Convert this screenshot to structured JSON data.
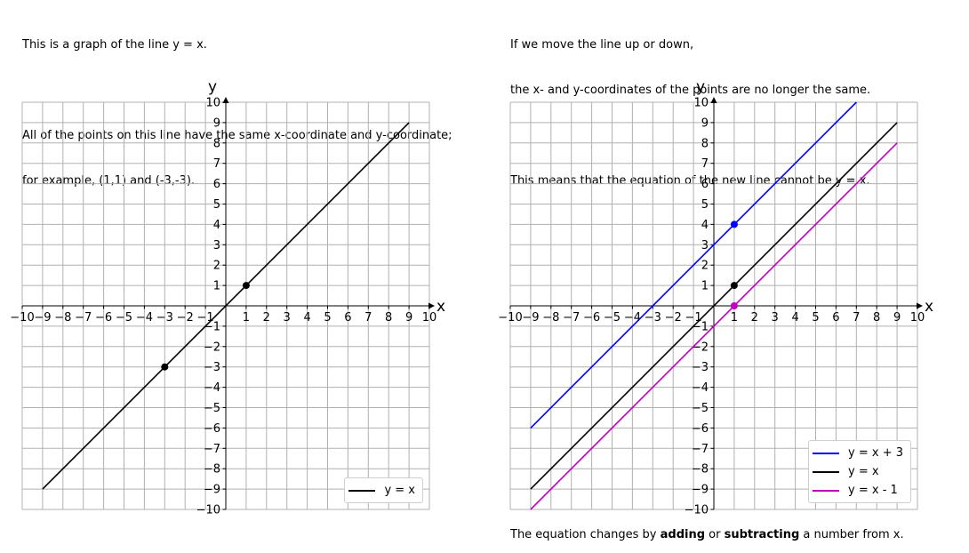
{
  "left_text": {
    "line1": "This is a graph of the line y = x.",
    "line2": "All of the points on this line have the same x-coordinate and y-coordinate;",
    "line3": "for example, (1,1) and (-3,-3)."
  },
  "right_text": {
    "line1": "If we move the line up or down,",
    "line2": "the x- and y-coordinates of the points are no longer the same.",
    "line3": "This means that the equation of the new line cannot be y = x."
  },
  "footer": {
    "before": "The equation changes by ",
    "bold1": "adding",
    "middle": " or ",
    "bold2": "subtracting",
    "after": " a number from x."
  },
  "chart_data": [
    {
      "type": "line",
      "xlabel": "x",
      "ylabel": "y",
      "xlim": [
        -10,
        10
      ],
      "ylim": [
        -10,
        10
      ],
      "ticks": [
        -10,
        -9,
        -8,
        -7,
        -6,
        -5,
        -4,
        -3,
        -2,
        -1,
        1,
        2,
        3,
        4,
        5,
        6,
        7,
        8,
        9,
        10
      ],
      "grid": true,
      "legend_position": "lower-right",
      "series": [
        {
          "name": "y = x",
          "color": "#000000",
          "x": [
            -9,
            9
          ],
          "y": [
            -9,
            9
          ]
        }
      ],
      "points": [
        {
          "x": 1,
          "y": 1,
          "color": "#000000"
        },
        {
          "x": -3,
          "y": -3,
          "color": "#000000"
        }
      ]
    },
    {
      "type": "line",
      "xlabel": "x",
      "ylabel": "y",
      "xlim": [
        -10,
        10
      ],
      "ylim": [
        -10,
        10
      ],
      "ticks": [
        -10,
        -9,
        -8,
        -7,
        -6,
        -5,
        -4,
        -3,
        -2,
        -1,
        1,
        2,
        3,
        4,
        5,
        6,
        7,
        8,
        9,
        10
      ],
      "grid": true,
      "legend_position": "lower-right",
      "series": [
        {
          "name": "y = x + 3",
          "color": "#0000ff",
          "x": [
            -9,
            7
          ],
          "y": [
            -6,
            10
          ]
        },
        {
          "name": "y = x",
          "color": "#000000",
          "x": [
            -9,
            9
          ],
          "y": [
            -9,
            9
          ]
        },
        {
          "name": "y = x - 1",
          "color": "#bf00bf",
          "x": [
            -9,
            9
          ],
          "y": [
            -10,
            8
          ]
        }
      ],
      "points": [
        {
          "x": 1,
          "y": 4,
          "color": "#0000ff"
        },
        {
          "x": 1,
          "y": 1,
          "color": "#000000"
        },
        {
          "x": 1,
          "y": 0,
          "color": "#bf00bf"
        }
      ]
    }
  ]
}
